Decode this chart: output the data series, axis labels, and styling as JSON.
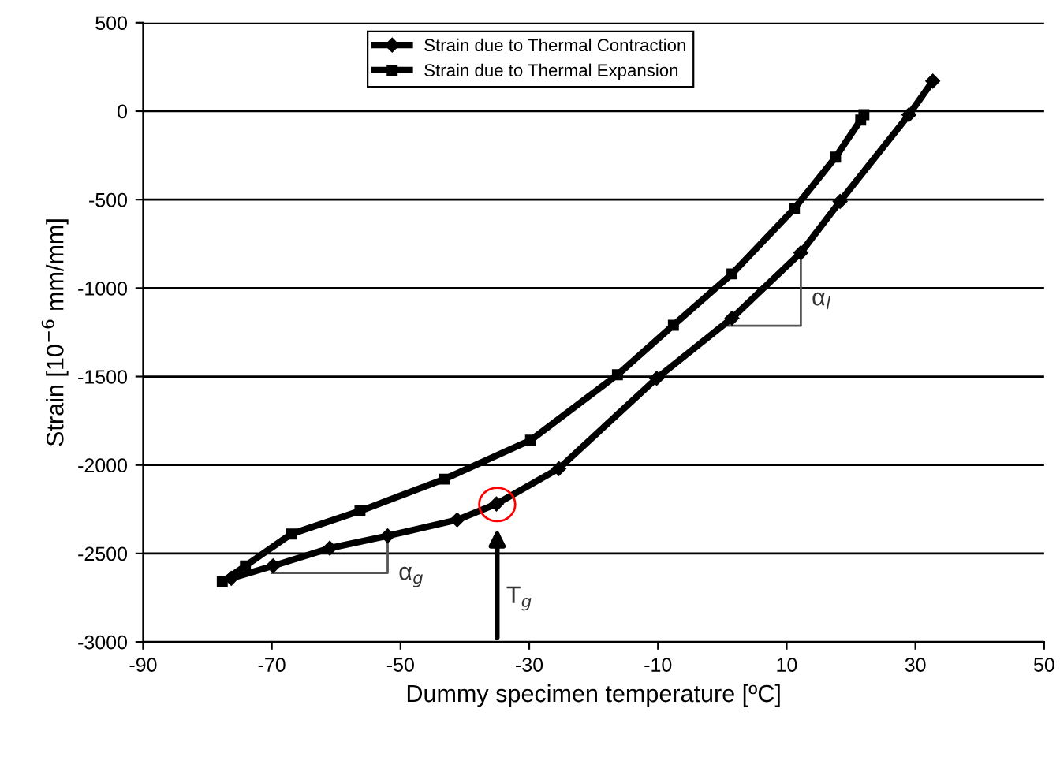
{
  "chart_data": {
    "type": "line",
    "xlabel": "Dummy specimen temperature [ºC]",
    "ylabel": "Strain [10$^{−6}$ mm/mm]",
    "series": [
      {
        "name": "Strain due to Thermal Contraction",
        "color": "#000000",
        "marker": "diamond",
        "x": [
          32.7,
          29,
          18.3,
          12.2,
          1.5,
          -10.2,
          -25.4,
          -35.1,
          -41.2,
          -52,
          -61,
          -69.8,
          -76.3
        ],
        "values": [
          170,
          -20,
          -510,
          -800,
          -1170,
          -1510,
          -2020,
          -2220,
          -2310,
          -2400,
          -2470,
          -2570,
          -2640
        ]
      },
      {
        "name": "Strain due to Thermal Expansion",
        "color": "#000000",
        "marker": "square",
        "x": [
          -77.7,
          -74.1,
          -67,
          -56.3,
          -43.2,
          -29.8,
          -16.3,
          -7.6,
          1.5,
          11.2,
          17.6,
          21.5,
          22
        ],
        "values": [
          -2660,
          -2570,
          -2390,
          -2260,
          -2080,
          -1860,
          -1490,
          -1210,
          -920,
          -550,
          -260,
          -50,
          -20
        ]
      }
    ],
    "annotations": [
      {
        "text": "α$_{l}$",
        "x": 12.2,
        "y": -800
      },
      {
        "text": "α$_{g}$",
        "x": -52,
        "y": -2400
      },
      "T$_{g}$"
    ],
    "xlim": [
      -90,
      50
    ],
    "xticks": [
      -90,
      -70,
      -50,
      -30,
      -10,
      10,
      30,
      50
    ],
    "ylim": [
      -3000,
      500
    ],
    "yticks": [
      -3000,
      -2500,
      -2000,
      -1500,
      -1000,
      -500,
      0,
      500
    ],
    "grid": "y",
    "legend": "top",
    "line_style": "solid"
  }
}
